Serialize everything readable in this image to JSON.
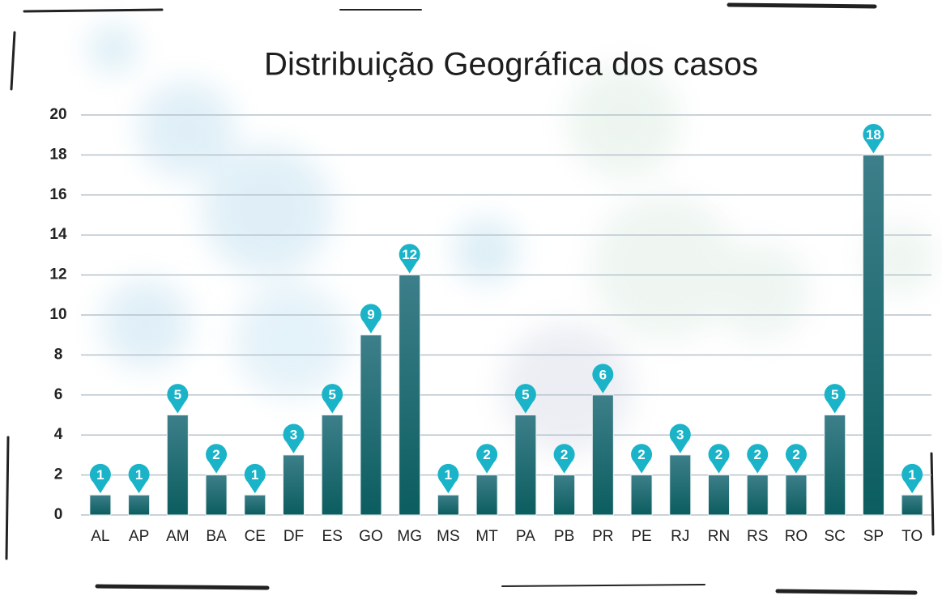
{
  "chart_data": {
    "type": "bar",
    "title": "Distribuição Geográfica dos casos",
    "categories": [
      "AL",
      "AP",
      "AM",
      "BA",
      "CE",
      "DF",
      "ES",
      "GO",
      "MG",
      "MS",
      "MT",
      "PA",
      "PB",
      "PR",
      "PE",
      "RJ",
      "RN",
      "RS",
      "RO",
      "SC",
      "SP",
      "TO"
    ],
    "values": [
      1,
      1,
      5,
      2,
      1,
      3,
      5,
      9,
      12,
      1,
      2,
      5,
      2,
      6,
      2,
      3,
      2,
      2,
      2,
      5,
      18,
      1
    ],
    "color": "#1a6a72",
    "label_color": "#1ab3c8",
    "ylim": [
      0,
      20
    ],
    "yticks": [
      0,
      2,
      4,
      6,
      8,
      10,
      12,
      14,
      16,
      18,
      20
    ],
    "grid": true
  }
}
